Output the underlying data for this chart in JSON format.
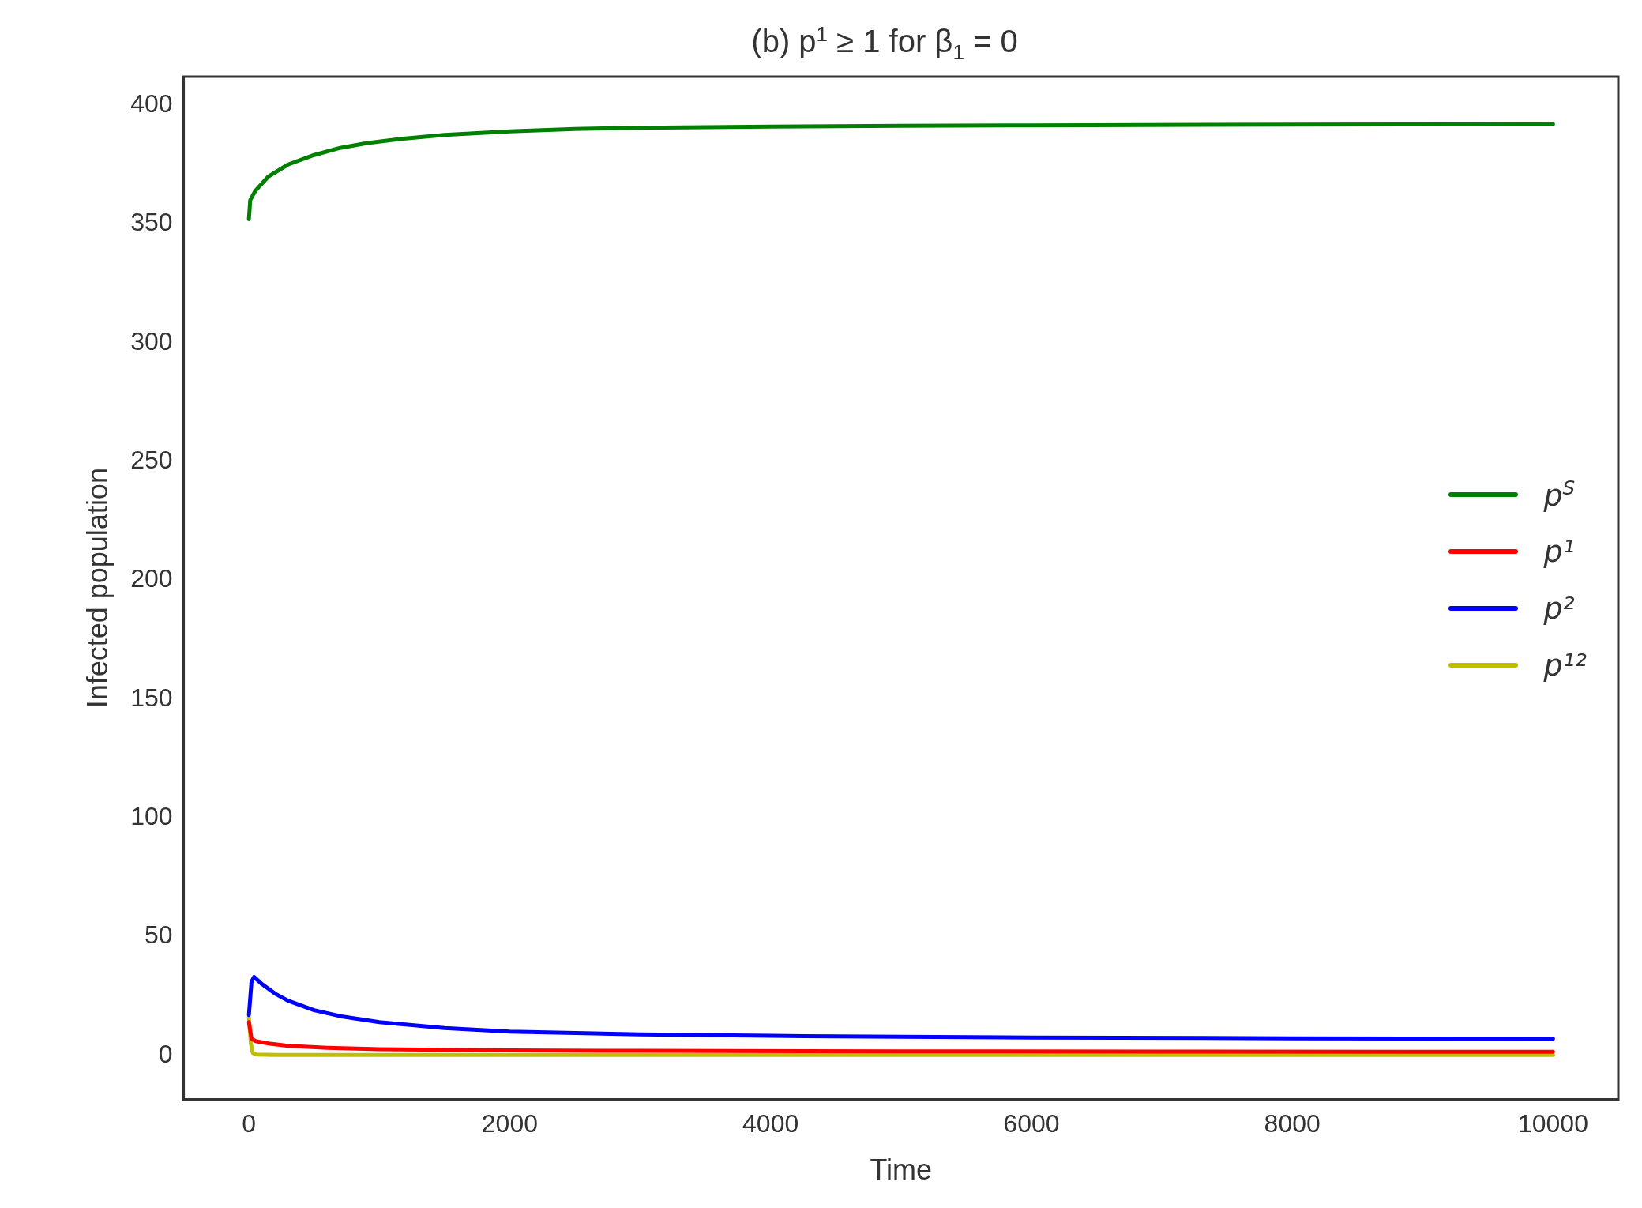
{
  "chart_data": {
    "type": "line",
    "title": "(b) p$^{1}$ ≥ 1 for β$_{1}$ = 0",
    "xlabel": "Time",
    "ylabel": "Infected population",
    "xlim": [
      -500,
      10500
    ],
    "ylim": [
      -18.5,
      412
    ],
    "xticks": [
      0,
      2000,
      4000,
      6000,
      8000,
      10000
    ],
    "yticks": [
      0,
      50,
      100,
      150,
      200,
      250,
      300,
      350,
      400
    ],
    "grid": false,
    "legend": "right",
    "marker": "none",
    "line_style": "solid",
    "series": [
      {
        "name": "p$^{S}$",
        "color": "#008000",
        "x": [
          0,
          10,
          50,
          150,
          300,
          500,
          700,
          900,
          1200,
          1500,
          2000,
          2500,
          3000,
          4000,
          5000,
          6000,
          8000,
          10000
        ],
        "values": [
          352,
          360,
          364,
          370,
          375,
          379,
          382,
          384,
          386,
          387.5,
          389,
          390,
          390.5,
          391,
          391.3,
          391.5,
          391.8,
          392
        ]
      },
      {
        "name": "p¹",
        "color": "#ff0000",
        "x": [
          0,
          20,
          50,
          150,
          300,
          600,
          1000,
          2000,
          3000,
          5000,
          7000,
          10000
        ],
        "values": [
          14,
          7,
          6,
          5,
          4,
          3.2,
          2.6,
          2.1,
          1.9,
          1.7,
          1.6,
          1.5
        ]
      },
      {
        "name": "p²",
        "color": "#0000ff",
        "x": [
          0,
          20,
          40,
          100,
          200,
          300,
          500,
          700,
          1000,
          1500,
          2000,
          3000,
          4000,
          5000,
          6000,
          8000,
          10000
        ],
        "values": [
          17,
          31,
          33,
          30,
          26,
          23,
          19,
          16.5,
          14,
          11.5,
          10,
          8.8,
          8.2,
          7.8,
          7.5,
          7.2,
          7
        ]
      },
      {
        "name": "p¹²",
        "color": "#bfbf00",
        "x": [
          0,
          15,
          30,
          60,
          200,
          1000,
          5000,
          10000
        ],
        "values": [
          16,
          5,
          1,
          0.3,
          0.2,
          0.2,
          0.2,
          0.2
        ]
      }
    ]
  }
}
